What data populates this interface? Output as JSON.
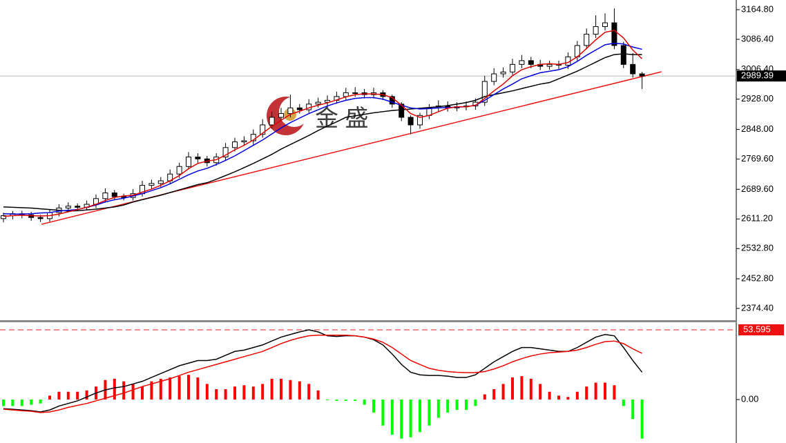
{
  "watermark": "金 盛",
  "chart_data": [
    {
      "type": "candlestick",
      "open": [
        2612,
        2620,
        2625,
        2622,
        2615,
        2612,
        2628,
        2640,
        2645,
        2642,
        2650,
        2665,
        2680,
        2670,
        2668,
        2678,
        2700,
        2705,
        2712,
        2730,
        2750,
        2775,
        2770,
        2760,
        2775,
        2800,
        2815,
        2818,
        2835,
        2860,
        2880,
        2890,
        2905,
        2900,
        2915,
        2920,
        2925,
        2935,
        2945,
        2945,
        2940,
        2945,
        2935,
        2915,
        2880,
        2860,
        2885,
        2905,
        2910,
        2905,
        2908,
        2910,
        2920,
        2975,
        2995,
        3000,
        3020,
        3030,
        3020,
        3015,
        3020,
        3018,
        3040,
        3070,
        3100,
        3120,
        3130,
        3070,
        3020,
        2995
      ],
      "high": [
        2628,
        2632,
        2633,
        2630,
        2622,
        2636,
        2650,
        2655,
        2652,
        2660,
        2676,
        2692,
        2688,
        2678,
        2690,
        2712,
        2715,
        2722,
        2742,
        2760,
        2788,
        2785,
        2778,
        2785,
        2812,
        2826,
        2830,
        2848,
        2875,
        2895,
        2905,
        2940,
        2915,
        2928,
        2932,
        2938,
        2948,
        2958,
        2960,
        2955,
        2958,
        2952,
        2940,
        2920,
        2885,
        2892,
        2915,
        2925,
        2922,
        2920,
        2922,
        2930,
        2990,
        3010,
        3012,
        3035,
        3045,
        3040,
        3032,
        3030,
        3030,
        3052,
        3082,
        3115,
        3150,
        3155,
        3168,
        3080,
        3050,
        3000
      ],
      "low": [
        2602,
        2610,
        2613,
        2606,
        2603,
        2604,
        2618,
        2630,
        2633,
        2634,
        2640,
        2656,
        2660,
        2660,
        2660,
        2670,
        2690,
        2696,
        2704,
        2720,
        2742,
        2760,
        2750,
        2752,
        2766,
        2790,
        2806,
        2808,
        2826,
        2850,
        2870,
        2880,
        2890,
        2892,
        2906,
        2910,
        2916,
        2926,
        2934,
        2930,
        2930,
        2926,
        2905,
        2870,
        2835,
        2850,
        2875,
        2895,
        2895,
        2896,
        2898,
        2900,
        2910,
        2965,
        2985,
        2992,
        3010,
        3010,
        3005,
        3006,
        3008,
        3008,
        3030,
        3060,
        3090,
        3110,
        3060,
        3010,
        2985,
        2955
      ],
      "close": [
        2620,
        2625,
        2622,
        2615,
        2612,
        2628,
        2640,
        2645,
        2642,
        2650,
        2665,
        2680,
        2670,
        2668,
        2678,
        2700,
        2705,
        2712,
        2730,
        2750,
        2775,
        2770,
        2760,
        2775,
        2800,
        2815,
        2818,
        2835,
        2860,
        2880,
        2890,
        2905,
        2900,
        2915,
        2920,
        2925,
        2935,
        2945,
        2945,
        2940,
        2945,
        2935,
        2915,
        2880,
        2860,
        2885,
        2905,
        2910,
        2905,
        2908,
        2910,
        2920,
        2975,
        2995,
        3000,
        3020,
        3030,
        3020,
        3015,
        3020,
        3018,
        3040,
        3070,
        3100,
        3120,
        3130,
        3070,
        3020,
        2995,
        2989.39
      ],
      "up_color": "#ffffff",
      "down_color": "#000000",
      "overlays": [
        {
          "color": "#000000",
          "values": [
            2643,
            2642,
            2641,
            2640,
            2638,
            2636,
            2634,
            2632,
            2633,
            2635,
            2637,
            2640,
            2643,
            2648,
            2656,
            2662,
            2668,
            2674,
            2681,
            2688,
            2695,
            2702,
            2707,
            2716,
            2726,
            2736,
            2747,
            2758,
            2770,
            2782,
            2796,
            2808,
            2820,
            2832,
            2845,
            2857,
            2868,
            2880,
            2884,
            2888,
            2892,
            2895,
            2898,
            2900,
            2902,
            2904,
            2906,
            2908,
            2911,
            2915,
            2919,
            2925,
            2935,
            2940,
            2945,
            2950,
            2956,
            2962,
            2968,
            2972,
            2982,
            2992,
            3002,
            3014,
            3026,
            3038,
            3046,
            3048,
            3046,
            3046
          ]
        },
        {
          "color": "#0000dd",
          "values": [
            2625,
            2624,
            2624,
            2625,
            2627,
            2628,
            2632,
            2634,
            2636,
            2642,
            2648,
            2656,
            2662,
            2666,
            2672,
            2678,
            2686,
            2694,
            2704,
            2716,
            2728,
            2738,
            2745,
            2755,
            2766,
            2778,
            2792,
            2806,
            2820,
            2836,
            2852,
            2866,
            2878,
            2890,
            2900,
            2910,
            2918,
            2925,
            2930,
            2932,
            2932,
            2928,
            2920,
            2912,
            2905,
            2902,
            2903,
            2905,
            2906,
            2907,
            2908,
            2912,
            2925,
            2940,
            2955,
            2968,
            2982,
            2990,
            2998,
            3002,
            3006,
            3014,
            3028,
            3044,
            3058,
            3072,
            3076,
            3074,
            3066,
            3060
          ]
        },
        {
          "color": "#dd0000",
          "values": [
            2618,
            2620,
            2621,
            2620,
            2619,
            2620,
            2624,
            2630,
            2636,
            2642,
            2650,
            2660,
            2668,
            2672,
            2674,
            2682,
            2690,
            2700,
            2712,
            2726,
            2744,
            2758,
            2764,
            2768,
            2780,
            2794,
            2806,
            2820,
            2838,
            2856,
            2872,
            2888,
            2896,
            2905,
            2912,
            2918,
            2926,
            2934,
            2940,
            2942,
            2942,
            2940,
            2932,
            2912,
            2890,
            2880,
            2885,
            2895,
            2904,
            2908,
            2908,
            2912,
            2930,
            2950,
            2968,
            2990,
            3006,
            3014,
            3020,
            3022,
            3020,
            3025,
            3040,
            3062,
            3085,
            3105,
            3110,
            3090,
            3058,
            3035
          ]
        }
      ],
      "trendline": {
        "color": "#ee1111",
        "x": [
          4.1,
          71.1
        ],
        "values": [
          2597,
          3000.5
        ]
      },
      "last_price": 2989.39,
      "ylim": [
        2341.5,
        3190.4
      ],
      "yticks": [
        {
          "value": 3164.8,
          "label": "3164.80"
        },
        {
          "value": 3086.4,
          "label": "3086.40"
        },
        {
          "value": 3006.4,
          "label": "3006.40"
        },
        {
          "value": 2928,
          "label": "2928.00"
        },
        {
          "value": 2848,
          "label": "2848.00"
        },
        {
          "value": 2769.6,
          "label": "2769.60"
        },
        {
          "value": 2689.6,
          "label": "2689.60"
        },
        {
          "value": 2611.2,
          "label": "2611.20"
        },
        {
          "value": 2532.8,
          "label": "2532.80"
        },
        {
          "value": 2452.8,
          "label": "2452.80"
        },
        {
          "value": 2374.4,
          "label": "2374.40"
        }
      ]
    },
    {
      "type": "macd",
      "values": [
        -5,
        -5,
        -5,
        -4,
        -3,
        3,
        6,
        6,
        6,
        7,
        10,
        15,
        16,
        14,
        12,
        10,
        14,
        16,
        17,
        18,
        19,
        17,
        12,
        8,
        8,
        10,
        11,
        10,
        12,
        16,
        16,
        15,
        14,
        12,
        7,
        -0.5,
        -1,
        -1,
        -1,
        -4,
        -10,
        -20,
        -27,
        -30,
        -29,
        -25,
        -20,
        -14,
        -10,
        -8,
        -8,
        -5,
        4,
        8,
        12,
        17,
        18,
        16,
        12,
        6,
        3,
        2,
        6,
        10,
        13,
        13,
        11,
        -5,
        -15,
        -30
      ],
      "pos_color": "#ff0000",
      "neg_color": "#00ff00",
      "lines": [
        {
          "color": "#000000",
          "values": [
            -7,
            -7.5,
            -8,
            -8.5,
            -9.5,
            -8,
            -5,
            -3,
            -1,
            2,
            5,
            7.4,
            9,
            10,
            12,
            14,
            17,
            20,
            23,
            26,
            28,
            30,
            30,
            31,
            34,
            37,
            38,
            40,
            42,
            45,
            48,
            50,
            52,
            53.6,
            52,
            49,
            48.5,
            49,
            49,
            48,
            46,
            42,
            35,
            27,
            21,
            19,
            18.5,
            18.5,
            18,
            17,
            17,
            19,
            24,
            29,
            33,
            37,
            40,
            40,
            39,
            38,
            37,
            37,
            40,
            44,
            48,
            50,
            49,
            40,
            30,
            21
          ]
        },
        {
          "color": "#ee0000",
          "values": [
            -7.4,
            -8,
            -8.6,
            -9,
            -10,
            -9.5,
            -8,
            -6,
            -4.5,
            -3,
            -1,
            1,
            3,
            5,
            7.5,
            10,
            12,
            14,
            16,
            18.5,
            21,
            23,
            25,
            27,
            29,
            31,
            33,
            35,
            37,
            40,
            43,
            45.5,
            47.5,
            49,
            49.5,
            49.5,
            49.5,
            49.5,
            49,
            48,
            46.5,
            44,
            40,
            35,
            30,
            27,
            24,
            22.5,
            21.5,
            21,
            20.7,
            20.7,
            21.5,
            23.5,
            26,
            29,
            31.5,
            33.5,
            35,
            36,
            36.5,
            37,
            38,
            40,
            42.5,
            44.5,
            45,
            43,
            39,
            35.5
          ]
        }
      ],
      "level": 53.595,
      "ylim": [
        -33.4,
        58.9
      ],
      "yticks": [
        {
          "value": 0,
          "label": "0.00"
        }
      ]
    }
  ]
}
